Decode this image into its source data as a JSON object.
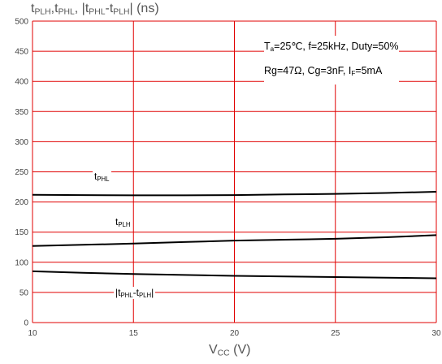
{
  "chart_data": {
    "type": "line",
    "ylabel": {
      "parts": [
        {
          "t": "t",
          "sub": "PLH"
        },
        {
          "t": ",t",
          "sub": "PHL"
        },
        {
          "t": ", |t",
          "sub": "PHL"
        },
        {
          "t": "-t",
          "sub": "PLH"
        },
        {
          "t": "| (ns)",
          "sub": ""
        }
      ]
    },
    "xlabel": {
      "parts": [
        {
          "t": "V",
          "sub": "CC"
        },
        {
          "t": " (V)",
          "sub": ""
        }
      ]
    },
    "xlim": [
      10,
      30
    ],
    "ylim": [
      0,
      500
    ],
    "xticks": [
      10,
      15,
      20,
      25,
      30
    ],
    "yticks": [
      0,
      50,
      100,
      150,
      200,
      250,
      300,
      350,
      400,
      450,
      500
    ],
    "grid": true,
    "grid_color": "#e00000",
    "line_color": "#000000",
    "conditions": {
      "line1": [
        {
          "t": "T",
          "sub": "a"
        },
        {
          "t": "=25℃, f=25kHz, Duty=50%",
          "sub": ""
        }
      ],
      "line2": [
        {
          "t": "Rg=47Ω, Cg=3nF, I",
          "sub": "F"
        },
        {
          "t": "=5mA",
          "sub": ""
        }
      ]
    },
    "series": [
      {
        "name": "tPHL",
        "label_parts": [
          {
            "t": "t",
            "sub": "PHL"
          }
        ],
        "x": [
          10,
          12.5,
          15,
          17.5,
          20,
          22.5,
          25,
          27.5,
          30
        ],
        "y": [
          212,
          211.5,
          211,
          211,
          211.5,
          212.5,
          213.5,
          215,
          217
        ]
      },
      {
        "name": "tPLH",
        "label_parts": [
          {
            "t": "t",
            "sub": "PLH"
          }
        ],
        "x": [
          10,
          12.5,
          15,
          17.5,
          20,
          22.5,
          25,
          27.5,
          30
        ],
        "y": [
          127,
          129,
          131,
          133.5,
          136,
          137.5,
          139,
          141.5,
          145
        ]
      },
      {
        "name": "|tPHL-tPLH|",
        "label_parts": [
          {
            "t": "|t",
            "sub": "PHL"
          },
          {
            "t": "-t",
            "sub": "PLH"
          },
          {
            "t": "|",
            "sub": ""
          }
        ],
        "x": [
          10,
          12.5,
          15,
          17.5,
          20,
          22.5,
          25,
          27.5,
          30
        ],
        "y": [
          85,
          82.5,
          80.5,
          79,
          77.5,
          76.5,
          75.5,
          74.5,
          73.5
        ]
      }
    ]
  }
}
